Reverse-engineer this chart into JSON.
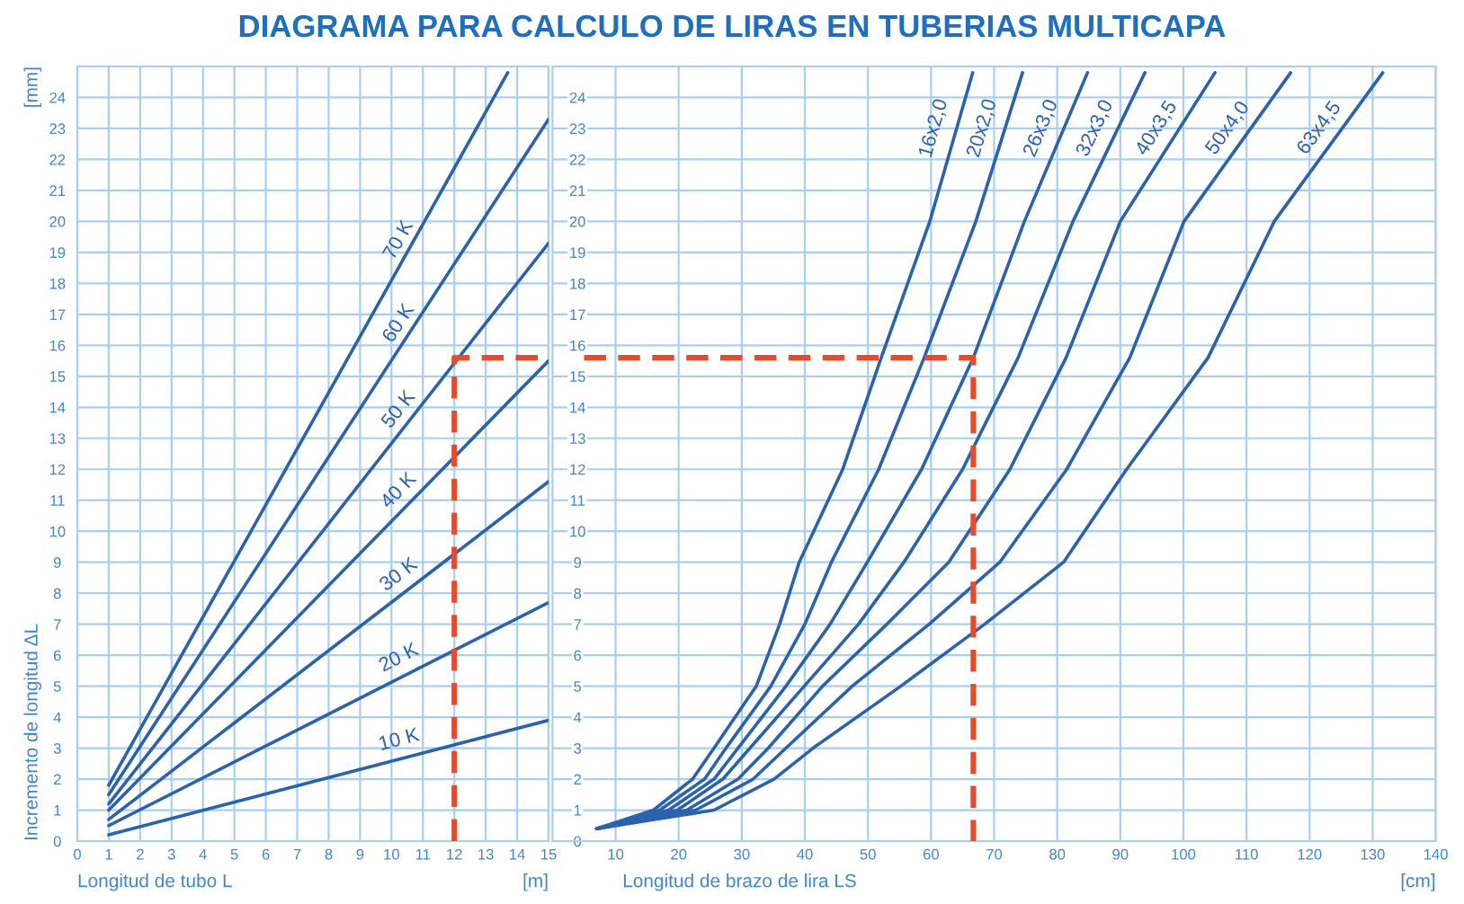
{
  "chart_data": [
    {
      "type": "line",
      "title": "DIAGRAMA PARA CALCULO DE LIRAS EN TUBERIAS MULTICAPA",
      "xlabel": "Longitud de tubo L",
      "ylabel": "Incremento de longitud ΔL",
      "annotations": [
        "[mm]",
        "[m]"
      ],
      "xlim": [
        0,
        15
      ],
      "xticks": [
        0,
        1,
        2,
        3,
        4,
        5,
        6,
        7,
        8,
        9,
        10,
        11,
        12,
        13,
        14,
        15
      ],
      "ylim": [
        0,
        25
      ],
      "yticks": [
        0,
        1,
        2,
        3,
        4,
        5,
        6,
        7,
        8,
        9,
        10,
        11,
        12,
        13,
        14,
        15,
        16,
        17,
        18,
        19,
        20,
        21,
        22,
        23,
        24
      ],
      "grid": true,
      "series": [
        {
          "name": "10 K",
          "color": "#2b62ad",
          "x": [
            1,
            15
          ],
          "values": [
            0.2,
            3.9
          ]
        },
        {
          "name": "20 K",
          "color": "#2b62ad",
          "x": [
            1,
            15
          ],
          "values": [
            0.5,
            7.7
          ]
        },
        {
          "name": "30 K",
          "color": "#2b62ad",
          "x": [
            1,
            15
          ],
          "values": [
            0.7,
            11.6
          ]
        },
        {
          "name": "40 K",
          "color": "#2b62ad",
          "x": [
            1,
            15
          ],
          "values": [
            1.0,
            15.5
          ]
        },
        {
          "name": "50 K",
          "color": "#2b62ad",
          "x": [
            1,
            15
          ],
          "values": [
            1.2,
            19.3
          ]
        },
        {
          "name": "60 K",
          "color": "#2b62ad",
          "x": [
            1,
            15
          ],
          "values": [
            1.5,
            23.3
          ]
        },
        {
          "name": "70 K",
          "color": "#2b62ad",
          "x": [
            1,
            13.7
          ],
          "values": [
            1.8,
            24.8
          ]
        },
        {
          "color": "#eb4a2a",
          "line_style": "dashed",
          "x": [
            12,
            12,
            15
          ],
          "values": [
            0,
            15.6,
            15.6
          ]
        }
      ]
    },
    {
      "type": "line",
      "xlabel": "Longitud de brazo de lira LS",
      "annotations": [
        "[cm]"
      ],
      "xlim": [
        0,
        140
      ],
      "xticks": [
        10,
        20,
        30,
        40,
        50,
        60,
        70,
        80,
        90,
        100,
        110,
        120,
        130,
        140
      ],
      "ylim": [
        0,
        25
      ],
      "yticks": [
        0,
        1,
        2,
        3,
        4,
        5,
        6,
        7,
        8,
        9,
        10,
        11,
        12,
        13,
        14,
        15,
        16,
        17,
        18,
        19,
        20,
        21,
        22,
        23,
        24
      ],
      "grid": true,
      "series": [
        {
          "name": "16x2,0",
          "color": "#2b62ad",
          "x": [
            7,
            16.0,
            22.2,
            25.6,
            32.3,
            36.0,
            39.1,
            46.0,
            52.1,
            59.8,
            66.6
          ],
          "values": [
            0.4,
            1,
            2,
            3,
            5,
            7,
            9,
            12,
            15.6,
            20,
            24.8
          ]
        },
        {
          "name": "20x2,0",
          "color": "#2b62ad",
          "x": [
            7,
            17.0,
            24.1,
            27.5,
            34.6,
            40.0,
            44.2,
            51.7,
            58.9,
            67.1,
            74.5
          ],
          "values": [
            0.4,
            1,
            2,
            3,
            5,
            7,
            9,
            12,
            15.6,
            20,
            24.8
          ]
        },
        {
          "name": "26x3,0",
          "color": "#2b62ad",
          "x": [
            7,
            18.4,
            25.6,
            29.4,
            37.0,
            44.0,
            49.9,
            58.5,
            66.7,
            74.8,
            84.8
          ],
          "values": [
            0.4,
            1,
            2,
            3,
            5,
            7,
            9,
            12,
            15.6,
            20,
            24.8
          ]
        },
        {
          "name": "32x3,0",
          "color": "#2b62ad",
          "x": [
            7,
            19.8,
            27.0,
            31.3,
            39.9,
            48.5,
            55.7,
            65.0,
            73.8,
            82.5,
            93.9
          ],
          "values": [
            0.4,
            1,
            2,
            3,
            5,
            7,
            9,
            12,
            15.6,
            20,
            24.8
          ]
        },
        {
          "name": "40x3,5",
          "color": "#2b62ad",
          "x": [
            7,
            21.3,
            29.4,
            34.2,
            42.8,
            53.0,
            62.8,
            72.5,
            81.4,
            90.0,
            105.0
          ],
          "values": [
            0.4,
            1,
            2,
            3,
            5,
            7,
            9,
            12,
            15.6,
            20,
            24.8
          ]
        },
        {
          "name": "50x4,0",
          "color": "#2b62ad",
          "x": [
            7,
            22.7,
            31.8,
            37.0,
            47.5,
            59.7,
            70.9,
            81.5,
            91.5,
            100.1,
            117.0
          ],
          "values": [
            0.4,
            1,
            2,
            3,
            5,
            7,
            9,
            12,
            15.6,
            20,
            24.8
          ]
        },
        {
          "name": "63x4,5",
          "color": "#2b62ad",
          "x": [
            7,
            25.6,
            35.1,
            41.3,
            55.2,
            68.5,
            81.0,
            91.0,
            103.9,
            114.4,
            131.6
          ],
          "values": [
            0.4,
            1,
            2,
            3,
            5,
            7,
            9,
            12,
            15.6,
            20,
            24.8
          ]
        },
        {
          "color": "#eb4a2a",
          "line_style": "dashed",
          "x": [
            5,
            66.7,
            66.7
          ],
          "values": [
            15.6,
            15.6,
            0
          ]
        }
      ]
    }
  ]
}
